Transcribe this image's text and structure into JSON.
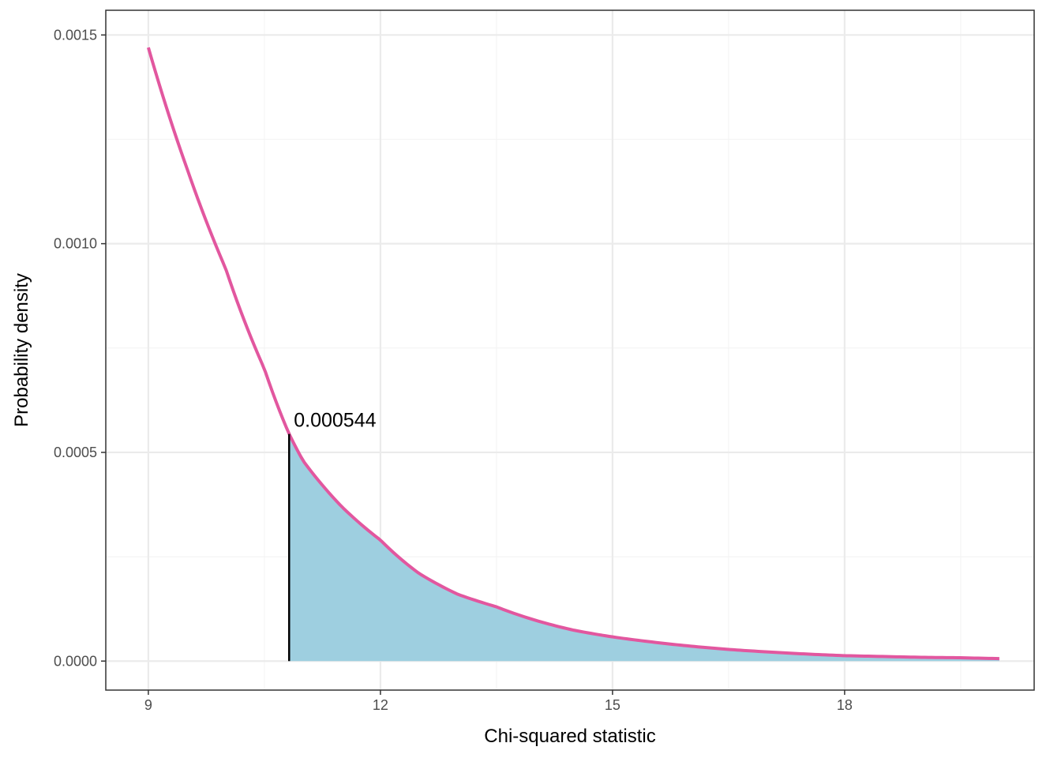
{
  "chart_data": {
    "type": "area",
    "xlabel": "Chi-squared statistic",
    "ylabel": "Probability density",
    "xlim": [
      8.45,
      20.45
    ],
    "ylim": [
      -6.95e-05,
      0.0015592
    ],
    "x_ticks": [
      9,
      12,
      15,
      18
    ],
    "x_tick_labels": [
      "9",
      "12",
      "15",
      "18"
    ],
    "y_ticks": [
      0,
      0.0005,
      0.001,
      0.0015
    ],
    "y_tick_labels": [
      "0.0000",
      "0.0005",
      "0.0010",
      "0.0015"
    ],
    "grid": true,
    "legend": "none",
    "critical_value": 10.82,
    "critical_density": 0.000544,
    "annotation": {
      "text": "0.000544",
      "x": 10.82,
      "y": 0.000544
    },
    "curve": {
      "x_from": 9,
      "x_to": 20,
      "points": [
        [
          9,
          0.00147
        ],
        [
          9.5,
          0.00118
        ],
        [
          10,
          0.00094
        ],
        [
          10.5,
          0.0007
        ],
        [
          10.82,
          0.000544
        ],
        [
          11,
          0.00048
        ],
        [
          11.5,
          0.00037
        ],
        [
          12,
          0.00029
        ],
        [
          12.5,
          0.00021
        ],
        [
          13,
          0.00016
        ],
        [
          13.5,
          0.00013
        ],
        [
          14,
          9.8e-05
        ],
        [
          14.5,
          7.4e-05
        ],
        [
          15,
          5.8e-05
        ],
        [
          15.5,
          4.6e-05
        ],
        [
          16,
          3.6e-05
        ],
        [
          16.5,
          2.8e-05
        ],
        [
          17,
          2.2e-05
        ],
        [
          17.5,
          1.7e-05
        ],
        [
          18,
          1.3e-05
        ],
        [
          18.5,
          1.1e-05
        ],
        [
          19,
          9e-06
        ],
        [
          19.5,
          8e-06
        ],
        [
          20,
          6e-06
        ]
      ]
    },
    "colors": {
      "curve": "#e2579f",
      "fill": "#9ecfe0",
      "critical_line": "#000000",
      "panel_border": "#333333",
      "grid_major": "#ebebeb",
      "grid_minor": "#f4f4f4"
    }
  }
}
